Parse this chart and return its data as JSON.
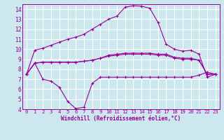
{
  "bg_color": "#cce8ee",
  "grid_color": "#ffffff",
  "line_color": "#990099",
  "xlabel": "Windchill (Refroidissement éolien,°C)",
  "xlim": [
    -0.5,
    23.5
  ],
  "ylim": [
    4,
    14.5
  ],
  "yticks": [
    4,
    5,
    6,
    7,
    8,
    9,
    10,
    11,
    12,
    13,
    14
  ],
  "xticks": [
    0,
    1,
    2,
    3,
    4,
    5,
    6,
    7,
    8,
    9,
    10,
    11,
    12,
    13,
    14,
    15,
    16,
    17,
    18,
    19,
    20,
    21,
    22,
    23
  ],
  "lines": [
    {
      "x": [
        0,
        1,
        2,
        3,
        4,
        5,
        6,
        7,
        8,
        9,
        10,
        11,
        12,
        13,
        14,
        15,
        16,
        17,
        18,
        19,
        20,
        21,
        22,
        23
      ],
      "y": [
        7.5,
        9.9,
        10.1,
        10.4,
        10.7,
        11.0,
        11.2,
        11.5,
        12.0,
        12.5,
        13.0,
        13.3,
        14.2,
        14.35,
        14.3,
        14.1,
        12.7,
        10.5,
        10.0,
        9.8,
        9.9,
        9.5,
        7.2,
        7.5
      ]
    },
    {
      "x": [
        0,
        1,
        2,
        3,
        4,
        5,
        6,
        7,
        8,
        9,
        10,
        11,
        12,
        13,
        14,
        15,
        16,
        17,
        18,
        19,
        20,
        21,
        22,
        23
      ],
      "y": [
        7.5,
        8.6,
        7.0,
        6.8,
        6.2,
        4.8,
        4.05,
        4.2,
        6.6,
        7.2,
        7.2,
        7.2,
        7.2,
        7.2,
        7.2,
        7.2,
        7.2,
        7.2,
        7.2,
        7.2,
        7.2,
        7.4,
        7.7,
        7.5
      ]
    },
    {
      "x": [
        0,
        1,
        2,
        3,
        4,
        5,
        6,
        7,
        8,
        9,
        10,
        11,
        12,
        13,
        14,
        15,
        16,
        17,
        18,
        19,
        20,
        21,
        22,
        23
      ],
      "y": [
        7.5,
        8.6,
        8.7,
        8.7,
        8.7,
        8.7,
        8.7,
        8.8,
        8.9,
        9.1,
        9.3,
        9.4,
        9.5,
        9.5,
        9.5,
        9.5,
        9.4,
        9.4,
        9.1,
        9.0,
        9.0,
        8.9,
        7.5,
        7.5
      ]
    },
    {
      "x": [
        0,
        1,
        2,
        3,
        4,
        5,
        6,
        7,
        8,
        9,
        10,
        11,
        12,
        13,
        14,
        15,
        16,
        17,
        18,
        19,
        20,
        21,
        22,
        23
      ],
      "y": [
        7.5,
        8.6,
        8.7,
        8.7,
        8.7,
        8.7,
        8.7,
        8.8,
        8.9,
        9.1,
        9.4,
        9.5,
        9.6,
        9.6,
        9.6,
        9.6,
        9.5,
        9.5,
        9.2,
        9.1,
        9.1,
        8.9,
        7.5,
        7.5
      ]
    }
  ]
}
